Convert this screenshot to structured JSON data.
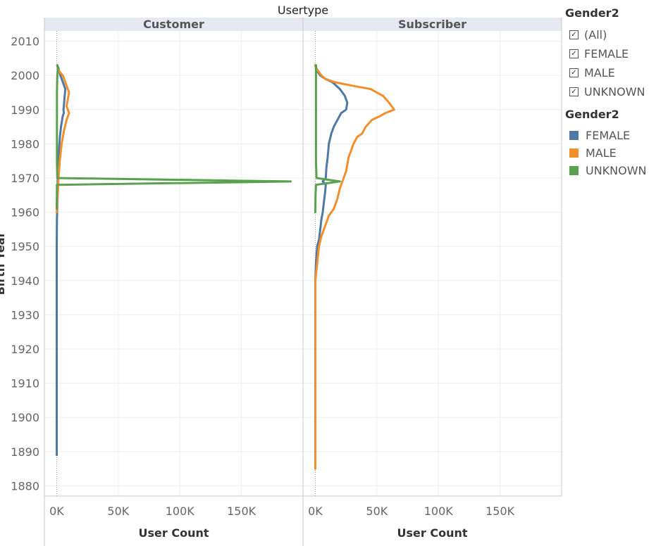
{
  "chart_data": {
    "type": "line",
    "title": "Usertype",
    "panels": [
      "Customer",
      "Subscriber"
    ],
    "xlabel": "User Count",
    "ylabel": "Birth Year",
    "xlim": [
      -10000,
      200000
    ],
    "ylim": [
      1877,
      2013
    ],
    "x_ticks": [
      "0K",
      "50K",
      "100K",
      "150K"
    ],
    "x_tick_values": [
      0,
      50000,
      100000,
      150000
    ],
    "y_ticks": [
      "1880",
      "1890",
      "1900",
      "1910",
      "1920",
      "1930",
      "1940",
      "1950",
      "1960",
      "1970",
      "1980",
      "1990",
      "2000",
      "2010"
    ],
    "y_tick_values": [
      1880,
      1890,
      1900,
      1910,
      1920,
      1930,
      1940,
      1950,
      1960,
      1970,
      1980,
      1990,
      2000,
      2010
    ],
    "series": [
      {
        "panel": "Customer",
        "name": "FEMALE",
        "color": "#4e79a7",
        "points": [
          [
            0,
            1889
          ],
          [
            0,
            1900
          ],
          [
            0,
            1920
          ],
          [
            0,
            1940
          ],
          [
            0,
            1950
          ],
          [
            200,
            1958
          ],
          [
            500,
            1962
          ],
          [
            700,
            1966
          ],
          [
            900,
            1970
          ],
          [
            1200,
            1974
          ],
          [
            1800,
            1978
          ],
          [
            2600,
            1982
          ],
          [
            3500,
            1985
          ],
          [
            4800,
            1988
          ],
          [
            5800,
            1989
          ],
          [
            5500,
            1990
          ],
          [
            6000,
            1992
          ],
          [
            6500,
            1994
          ],
          [
            7000,
            1996
          ],
          [
            5000,
            1998
          ],
          [
            3000,
            2000
          ],
          [
            1500,
            2002
          ],
          [
            500,
            2003
          ]
        ]
      },
      {
        "panel": "Customer",
        "name": "MALE",
        "color": "#f28e2b",
        "points": [
          [
            0,
            1960
          ],
          [
            800,
            1965
          ],
          [
            1500,
            1970
          ],
          [
            2500,
            1975
          ],
          [
            4000,
            1980
          ],
          [
            6000,
            1984
          ],
          [
            8000,
            1987
          ],
          [
            10000,
            1989
          ],
          [
            8000,
            1991
          ],
          [
            9000,
            1993
          ],
          [
            10000,
            1995
          ],
          [
            8000,
            1997
          ],
          [
            6000,
            1999
          ],
          [
            5000,
            2000
          ],
          [
            2500,
            2001
          ],
          [
            1000,
            2002
          ],
          [
            500,
            2003
          ]
        ]
      },
      {
        "panel": "Customer",
        "name": "UNKNOWN",
        "color": "#59a14f",
        "points": [
          [
            0,
            1961
          ],
          [
            100,
            1965
          ],
          [
            200,
            1968
          ],
          [
            190000,
            1969
          ],
          [
            500,
            1970
          ],
          [
            200,
            1975
          ],
          [
            200,
            1985
          ],
          [
            200,
            1995
          ],
          [
            500,
            2000
          ],
          [
            1000,
            2002
          ],
          [
            500,
            2003
          ]
        ]
      },
      {
        "panel": "Subscriber",
        "name": "FEMALE",
        "color": "#4e79a7",
        "points": [
          [
            0,
            1888
          ],
          [
            0,
            1900
          ],
          [
            0,
            1920
          ],
          [
            0,
            1940
          ],
          [
            500,
            1945
          ],
          [
            1500,
            1950
          ],
          [
            3000,
            1952
          ],
          [
            4000,
            1955
          ],
          [
            5000,
            1958
          ],
          [
            6000,
            1960
          ],
          [
            7000,
            1963
          ],
          [
            8000,
            1966
          ],
          [
            8500,
            1968
          ],
          [
            6000,
            1969
          ],
          [
            8500,
            1970
          ],
          [
            9000,
            1973
          ],
          [
            10000,
            1976
          ],
          [
            11000,
            1980
          ],
          [
            13000,
            1983
          ],
          [
            15000,
            1985
          ],
          [
            18000,
            1987
          ],
          [
            21000,
            1989
          ],
          [
            25000,
            1990
          ],
          [
            26000,
            1992
          ],
          [
            24000,
            1994
          ],
          [
            20000,
            1996
          ],
          [
            14000,
            1998
          ],
          [
            8000,
            1999
          ],
          [
            4000,
            2000
          ],
          [
            2000,
            2001
          ],
          [
            500,
            2002
          ],
          [
            0,
            2003
          ]
        ]
      },
      {
        "panel": "Subscriber",
        "name": "MALE",
        "color": "#f28e2b",
        "points": [
          [
            0,
            1885
          ],
          [
            0,
            1895
          ],
          [
            0,
            1920
          ],
          [
            0,
            1940
          ],
          [
            1500,
            1945
          ],
          [
            3000,
            1950
          ],
          [
            5000,
            1953
          ],
          [
            8000,
            1956
          ],
          [
            11000,
            1959
          ],
          [
            15000,
            1961
          ],
          [
            18000,
            1964
          ],
          [
            20000,
            1967
          ],
          [
            22000,
            1969
          ],
          [
            23000,
            1970
          ],
          [
            25000,
            1972
          ],
          [
            26000,
            1974
          ],
          [
            27000,
            1976
          ],
          [
            29000,
            1978
          ],
          [
            31000,
            1980
          ],
          [
            34000,
            1982
          ],
          [
            38000,
            1983
          ],
          [
            41000,
            1985
          ],
          [
            46000,
            1987
          ],
          [
            52000,
            1988
          ],
          [
            57000,
            1989
          ],
          [
            64000,
            1990
          ],
          [
            60000,
            1992
          ],
          [
            55000,
            1994
          ],
          [
            45000,
            1996
          ],
          [
            30000,
            1997
          ],
          [
            16000,
            1998
          ],
          [
            8000,
            1999
          ],
          [
            5000,
            2000
          ],
          [
            3000,
            2001
          ],
          [
            1000,
            2002
          ],
          [
            0,
            2003
          ]
        ]
      },
      {
        "panel": "Subscriber",
        "name": "UNKNOWN",
        "color": "#59a14f",
        "points": [
          [
            0,
            1960
          ],
          [
            200,
            1965
          ],
          [
            500,
            1968
          ],
          [
            20000,
            1969
          ],
          [
            1000,
            1970
          ],
          [
            500,
            1975
          ],
          [
            500,
            1985
          ],
          [
            500,
            1995
          ],
          [
            500,
            2000
          ],
          [
            500,
            2003
          ]
        ]
      }
    ],
    "legend": {
      "position": "right"
    },
    "grid": true
  },
  "filter": {
    "title": "Gender2",
    "items": [
      {
        "label": "(All)",
        "checked": true
      },
      {
        "label": "FEMALE",
        "checked": true
      },
      {
        "label": "MALE",
        "checked": true
      },
      {
        "label": "UNKNOWN",
        "checked": true
      }
    ]
  },
  "color_legend": {
    "title": "Gender2",
    "items": [
      {
        "label": "FEMALE",
        "color": "#4e79a7"
      },
      {
        "label": "MALE",
        "color": "#f28e2b"
      },
      {
        "label": "UNKNOWN",
        "color": "#59a14f"
      }
    ]
  }
}
